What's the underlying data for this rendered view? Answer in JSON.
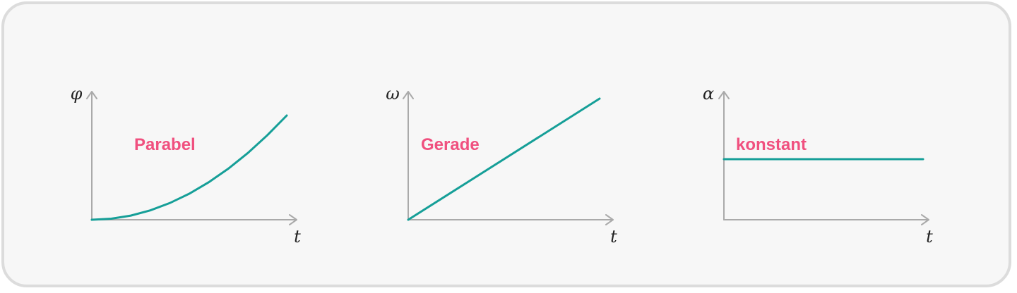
{
  "chart_data": [
    {
      "type": "line",
      "ylabel": "φ",
      "xlabel": "t",
      "annotation": "Parabel",
      "x": [
        0,
        0.1,
        0.2,
        0.3,
        0.4,
        0.5,
        0.6,
        0.7,
        0.8,
        0.9,
        1.0
      ],
      "y": [
        0,
        0.01,
        0.04,
        0.09,
        0.16,
        0.25,
        0.36,
        0.49,
        0.64,
        0.81,
        1.0
      ]
    },
    {
      "type": "line",
      "ylabel": "ω",
      "xlabel": "t",
      "annotation": "Gerade",
      "x": [
        0,
        1.0
      ],
      "y": [
        0,
        1.0
      ]
    },
    {
      "type": "line",
      "ylabel": "α",
      "xlabel": "t",
      "annotation": "konstant",
      "x": [
        0,
        1.0
      ],
      "y": [
        0.5,
        0.5
      ]
    }
  ],
  "colors": {
    "curve": "#169f98",
    "label": "#f0507f",
    "axis": "#aaaaaa"
  }
}
